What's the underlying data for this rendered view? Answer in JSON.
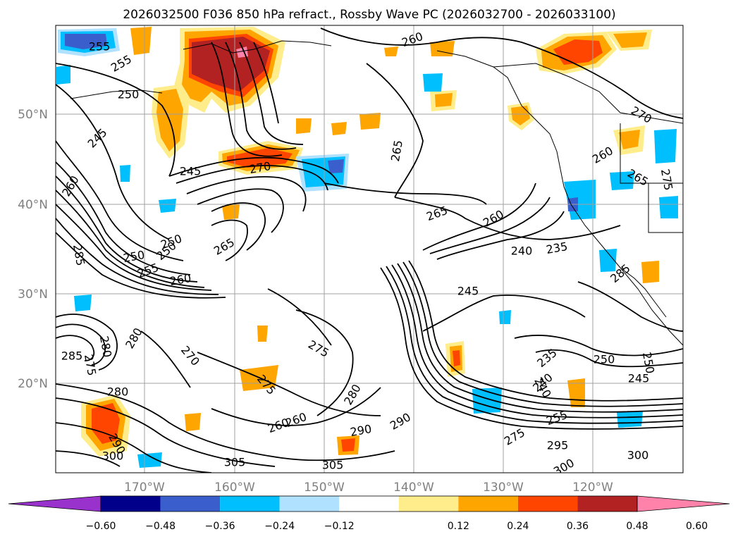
{
  "title": "2026032500 F036 850 hPa refract., Rossby Wave PC (2026032700 - 2026033100)",
  "lat_labels": [
    "50°N",
    "40°N",
    "30°N",
    "20°N"
  ],
  "lon_labels": [
    "170°W",
    "160°W",
    "150°W",
    "140°W",
    "130°W",
    "120°W"
  ],
  "contour_labels": [
    "255",
    "255",
    "250",
    "245",
    "245",
    "260",
    "260",
    "250",
    "250",
    "265",
    "265",
    "270",
    "260",
    "265",
    "270",
    "260",
    "255",
    "240",
    "250",
    "260",
    "240",
    "235",
    "265",
    "275",
    "245",
    "280",
    "285",
    "275",
    "280",
    "270",
    "275",
    "280",
    "275",
    "285",
    "290",
    "290",
    "300",
    "305",
    "305",
    "295",
    "260",
    "275",
    "255",
    "240",
    "235",
    "250",
    "245",
    "250",
    "285",
    "290",
    "300",
    "300",
    "280",
    "260"
  ],
  "colorbar": {
    "ticks": [
      "−0.60",
      "−0.48",
      "−0.36",
      "−0.24",
      "−0.12",
      "0.12",
      "0.24",
      "0.36",
      "0.48",
      "0.60"
    ],
    "colors": [
      "#9932cc",
      "#00008b",
      "#3a5fcd",
      "#00bfff",
      "#b0e2ff",
      "#ffffff",
      "#ffec8b",
      "#ffa500",
      "#ff4500",
      "#b22222",
      "#ff82ab"
    ]
  },
  "fill_colors": {
    "pos1": "#ffec8b",
    "pos2": "#ffa500",
    "pos3": "#ff4500",
    "pos4": "#b22222",
    "pos5": "#ff82ab",
    "neg1": "#b0e2ff",
    "neg2": "#00bfff",
    "neg3": "#3a5fcd"
  }
}
